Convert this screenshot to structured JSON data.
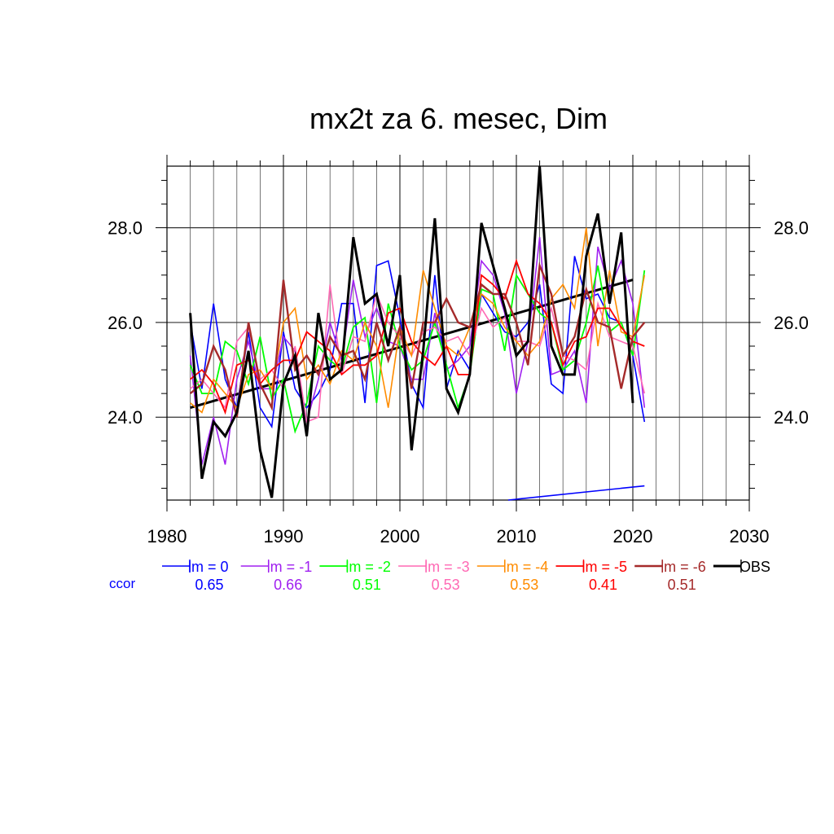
{
  "chart_data": {
    "type": "line",
    "title": "mx2t za 6. mesec, Dim",
    "xlabel": "",
    "ylabel": "",
    "xlim": [
      1980,
      2030
    ],
    "ylim": [
      22.25,
      29.3
    ],
    "x_ticks": [
      1980,
      1990,
      2000,
      2010,
      2020,
      2030
    ],
    "y_ticks": [
      24.0,
      26.0,
      28.0
    ],
    "x_tick_labels": [
      "1980",
      "1990",
      "2000",
      "2010",
      "2020",
      "2030"
    ],
    "y_tick_labels": [
      "24.0",
      "26.0",
      "28.0"
    ],
    "grid": true,
    "legend_position": "bottom",
    "ccor_label": "ccor",
    "years": [
      1982,
      1983,
      1984,
      1985,
      1986,
      1987,
      1988,
      1989,
      1990,
      1991,
      1992,
      1993,
      1994,
      1995,
      1996,
      1997,
      1998,
      1999,
      2000,
      2001,
      2002,
      2003,
      2004,
      2005,
      2006,
      2007,
      2008,
      2009,
      2010,
      2011,
      2012,
      2013,
      2014,
      2015,
      2016,
      2017,
      2018,
      2019,
      2020,
      2021
    ],
    "series": [
      {
        "name": "lm = 0",
        "color": "#0000ff",
        "width": 1.6,
        "ccor": "0.65",
        "values": [
          26.0,
          24.6,
          26.4,
          24.8,
          24.2,
          25.8,
          24.2,
          23.8,
          25.8,
          24.6,
          24.2,
          24.5,
          25.0,
          26.4,
          26.4,
          24.3,
          27.2,
          27.3,
          26.1,
          24.7,
          24.2,
          27.0,
          24.6,
          25.4,
          25.0,
          26.6,
          26.2,
          25.8,
          25.7,
          26.0,
          26.8,
          24.7,
          24.5,
          27.4,
          26.5,
          26.6,
          26.1,
          26.0,
          25.3,
          23.9
        ]
      },
      {
        "name": "lm = -1",
        "color": "#a020f0",
        "width": 1.6,
        "ccor": "0.66",
        "values": [
          25.3,
          23.0,
          24.0,
          23.0,
          24.8,
          25.6,
          24.6,
          24.6,
          25.7,
          25.4,
          23.9,
          24.8,
          26.0,
          25.2,
          26.9,
          25.7,
          26.3,
          25.6,
          25.5,
          24.8,
          24.8,
          26.2,
          25.0,
          25.2,
          25.5,
          27.3,
          27.0,
          26.2,
          24.5,
          25.6,
          27.8,
          24.9,
          25.0,
          25.4,
          24.3,
          27.6,
          26.7,
          27.3,
          26.4,
          24.2
        ]
      },
      {
        "name": "lm = -2",
        "color": "#00ff00",
        "width": 1.8,
        "ccor": "0.51",
        "values": [
          25.1,
          24.5,
          24.5,
          25.6,
          25.4,
          24.7,
          25.7,
          24.4,
          24.8,
          23.7,
          24.3,
          25.5,
          25.2,
          25.0,
          25.9,
          26.1,
          24.3,
          26.4,
          25.5,
          25.0,
          25.2,
          26.0,
          25.1,
          24.2,
          24.9,
          26.7,
          26.6,
          25.4,
          27.0,
          26.6,
          26.2,
          26.0,
          25.0,
          25.2,
          26.0,
          27.2,
          25.8,
          26.0,
          25.3,
          27.1
        ]
      },
      {
        "name": "lm = -3",
        "color": "#ff69b4",
        "width": 1.6,
        "ccor": "0.53",
        "values": [
          24.6,
          24.8,
          24.5,
          24.2,
          25.6,
          25.9,
          24.8,
          25.0,
          24.6,
          25.5,
          23.9,
          24.0,
          26.8,
          24.9,
          25.7,
          25.6,
          26.6,
          26.0,
          25.7,
          25.3,
          25.8,
          25.9,
          25.6,
          25.7,
          25.3,
          26.3,
          25.9,
          26.1,
          25.6,
          25.6,
          25.5,
          26.3,
          25.3,
          25.2,
          25.0,
          26.4,
          25.7,
          25.6,
          25.5,
          24.5
        ]
      },
      {
        "name": "lm = -4",
        "color": "#ff8c00",
        "width": 1.6,
        "ccor": "0.53",
        "values": [
          24.3,
          24.1,
          24.8,
          24.5,
          24.2,
          24.9,
          25.0,
          24.6,
          26.0,
          26.3,
          24.8,
          25.1,
          24.7,
          25.4,
          25.2,
          26.0,
          25.5,
          24.2,
          25.9,
          25.3,
          27.1,
          26.3,
          25.5,
          25.3,
          25.9,
          26.6,
          26.4,
          25.9,
          25.6,
          25.3,
          25.6,
          26.5,
          26.8,
          26.3,
          28.0,
          25.5,
          27.1,
          25.8,
          25.7,
          27.0
        ]
      },
      {
        "name": "lm = -5",
        "color": "#ff0000",
        "width": 1.8,
        "ccor": "0.41",
        "values": [
          24.8,
          25.0,
          24.7,
          24.1,
          25.1,
          25.2,
          24.7,
          25.0,
          25.2,
          25.2,
          25.8,
          25.6,
          25.4,
          24.9,
          25.1,
          25.1,
          25.3,
          26.2,
          26.3,
          25.6,
          25.3,
          25.1,
          25.5,
          24.9,
          24.9,
          27.0,
          26.8,
          26.5,
          27.3,
          26.6,
          26.4,
          26.0,
          25.1,
          25.6,
          25.7,
          26.3,
          26.3,
          25.9,
          25.6,
          25.5
        ]
      },
      {
        "name": "lm = -6",
        "color": "#a52a2a",
        "width": 2.4,
        "ccor": "0.51",
        "values": [
          24.5,
          24.7,
          25.5,
          25.0,
          24.0,
          26.0,
          24.7,
          24.2,
          26.9,
          25.0,
          25.3,
          24.9,
          25.7,
          25.3,
          25.4,
          24.8,
          26.0,
          25.2,
          25.9,
          24.6,
          26.0,
          26.0,
          26.5,
          26.0,
          25.9,
          26.8,
          26.6,
          26.6,
          26.0,
          25.1,
          27.2,
          26.6,
          25.3,
          25.7,
          26.7,
          26.0,
          25.9,
          24.6,
          25.7,
          26.0
        ]
      },
      {
        "name": "OBS",
        "color": "#000000",
        "width": 3.0,
        "ccor": "",
        "values": [
          26.2,
          22.7,
          23.9,
          23.6,
          24.1,
          25.4,
          23.3,
          22.3,
          24.7,
          25.3,
          23.6,
          26.2,
          24.8,
          25.0,
          27.8,
          26.4,
          26.6,
          25.5,
          27.0,
          23.3,
          25.4,
          28.2,
          24.6,
          24.1,
          24.9,
          28.1,
          27.2,
          26.3,
          25.3,
          25.6,
          29.3,
          25.5,
          24.9,
          24.9,
          27.4,
          28.3,
          26.4,
          27.9,
          24.3
        ]
      }
    ],
    "trend_lines": [
      {
        "color": "#000000",
        "width": 3.0,
        "x": [
          1982,
          2020
        ],
        "y": [
          24.2,
          26.9
        ]
      },
      {
        "color": "#0000ff",
        "width": 1.6,
        "x": [
          2009.3,
          2021
        ],
        "y": [
          22.25,
          22.55
        ]
      }
    ]
  }
}
